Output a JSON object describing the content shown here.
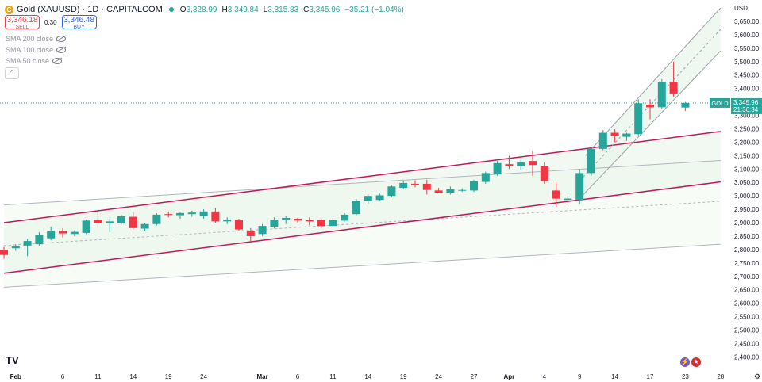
{
  "header": {
    "symbol": "Gold (XAUUSD) · 1D · CAPITALCOM",
    "coin_glyph": "G",
    "o_label": "O",
    "o_value": "3,328.99",
    "h_label": "H",
    "h_value": "3,349.84",
    "l_label": "L",
    "l_value": "3,315.83",
    "c_label": "C",
    "c_value": "3,345.96",
    "change": "−35.21 (−1.04%)"
  },
  "trade": {
    "sell_price": "3,346.18",
    "sell_label": "SELL",
    "spread": "0.30",
    "buy_price": "3,346.48",
    "buy_label": "BUY"
  },
  "indicators": [
    "SMA 200 close",
    "SMA 100 close",
    "SMA 50 close"
  ],
  "collapse_glyph": "⌃",
  "tv_logo": "TV",
  "currency": "USD",
  "price_tag": {
    "label": "GOLD",
    "price": "3,345.96",
    "countdown": "21:36:34"
  },
  "colors": {
    "up": "#26a69a",
    "down": "#f23645",
    "channel_red": "#c2185b",
    "channel_gray": "#b2b5be",
    "fill": "#e8f5e9"
  },
  "chart_data": {
    "type": "candlestick",
    "title": "Gold (XAUUSD) 1D",
    "ylim": [
      2360,
      3700
    ],
    "y_ticks": [
      "3,650.00",
      "3,600.00",
      "3,550.00",
      "3,500.00",
      "3,450.00",
      "3,400.00",
      "3,350.00",
      "3,300.00",
      "3,250.00",
      "3,200.00",
      "3,150.00",
      "3,100.00",
      "3,050.00",
      "3,000.00",
      "2,950.00",
      "2,900.00",
      "2,850.00",
      "2,800.00",
      "2,750.00",
      "2,700.00",
      "2,650.00",
      "2,600.00",
      "2,550.00",
      "2,500.00",
      "2,450.00",
      "2,400.00"
    ],
    "y_tick_values": [
      3650,
      3600,
      3550,
      3500,
      3450,
      3400,
      3350,
      3300,
      3250,
      3200,
      3150,
      3100,
      3050,
      3000,
      2950,
      2900,
      2850,
      2800,
      2750,
      2700,
      2650,
      2600,
      2550,
      2500,
      2450,
      2400
    ],
    "x_ticks": [
      {
        "label": "Feb",
        "i": 1,
        "bold": true
      },
      {
        "label": "6",
        "i": 5
      },
      {
        "label": "11",
        "i": 8
      },
      {
        "label": "14",
        "i": 11
      },
      {
        "label": "19",
        "i": 14
      },
      {
        "label": "24",
        "i": 17
      },
      {
        "label": "Mar",
        "i": 22,
        "bold": true
      },
      {
        "label": "6",
        "i": 25
      },
      {
        "label": "11",
        "i": 28
      },
      {
        "label": "14",
        "i": 31
      },
      {
        "label": "19",
        "i": 34
      },
      {
        "label": "24",
        "i": 37
      },
      {
        "label": "27",
        "i": 40
      },
      {
        "label": "Apr",
        "i": 43,
        "bold": true
      },
      {
        "label": "4",
        "i": 46
      },
      {
        "label": "9",
        "i": 49
      },
      {
        "label": "14",
        "i": 52
      },
      {
        "label": "17",
        "i": 55
      },
      {
        "label": "23",
        "i": 58
      },
      {
        "label": "28",
        "i": 61
      }
    ],
    "x_step": 14.8,
    "x_offset": 5,
    "candles": [
      {
        "i": 0,
        "o": 2800,
        "h": 2810,
        "l": 2765,
        "c": 2780
      },
      {
        "i": 1,
        "o": 2805,
        "h": 2820,
        "l": 2795,
        "c": 2812
      },
      {
        "i": 2,
        "o": 2815,
        "h": 2840,
        "l": 2775,
        "c": 2832
      },
      {
        "i": 3,
        "o": 2820,
        "h": 2865,
        "l": 2815,
        "c": 2855
      },
      {
        "i": 4,
        "o": 2842,
        "h": 2885,
        "l": 2835,
        "c": 2870
      },
      {
        "i": 5,
        "o": 2870,
        "h": 2880,
        "l": 2845,
        "c": 2860
      },
      {
        "i": 6,
        "o": 2858,
        "h": 2872,
        "l": 2850,
        "c": 2866
      },
      {
        "i": 7,
        "o": 2862,
        "h": 2912,
        "l": 2858,
        "c": 2908
      },
      {
        "i": 8,
        "o": 2910,
        "h": 2942,
        "l": 2880,
        "c": 2898
      },
      {
        "i": 9,
        "o": 2898,
        "h": 2915,
        "l": 2865,
        "c": 2905
      },
      {
        "i": 10,
        "o": 2900,
        "h": 2930,
        "l": 2895,
        "c": 2924
      },
      {
        "i": 11,
        "o": 2922,
        "h": 2940,
        "l": 2875,
        "c": 2880
      },
      {
        "i": 12,
        "o": 2878,
        "h": 2900,
        "l": 2870,
        "c": 2895
      },
      {
        "i": 13,
        "o": 2895,
        "h": 2935,
        "l": 2890,
        "c": 2930
      },
      {
        "i": 14,
        "o": 2932,
        "h": 2942,
        "l": 2920,
        "c": 2930
      },
      {
        "i": 15,
        "o": 2928,
        "h": 2940,
        "l": 2915,
        "c": 2936
      },
      {
        "i": 16,
        "o": 2932,
        "h": 2945,
        "l": 2922,
        "c": 2938
      },
      {
        "i": 17,
        "o": 2925,
        "h": 2950,
        "l": 2915,
        "c": 2942
      },
      {
        "i": 18,
        "o": 2942,
        "h": 2955,
        "l": 2900,
        "c": 2905
      },
      {
        "i": 19,
        "o": 2905,
        "h": 2920,
        "l": 2895,
        "c": 2912
      },
      {
        "i": 20,
        "o": 2912,
        "h": 2915,
        "l": 2870,
        "c": 2875
      },
      {
        "i": 21,
        "o": 2870,
        "h": 2880,
        "l": 2830,
        "c": 2850
      },
      {
        "i": 22,
        "o": 2858,
        "h": 2895,
        "l": 2850,
        "c": 2888
      },
      {
        "i": 23,
        "o": 2885,
        "h": 2920,
        "l": 2878,
        "c": 2912
      },
      {
        "i": 24,
        "o": 2910,
        "h": 2925,
        "l": 2895,
        "c": 2918
      },
      {
        "i": 25,
        "o": 2915,
        "h": 2918,
        "l": 2900,
        "c": 2908
      },
      {
        "i": 26,
        "o": 2910,
        "h": 2920,
        "l": 2890,
        "c": 2905
      },
      {
        "i": 27,
        "o": 2910,
        "h": 2915,
        "l": 2880,
        "c": 2888
      },
      {
        "i": 28,
        "o": 2888,
        "h": 2918,
        "l": 2882,
        "c": 2912
      },
      {
        "i": 29,
        "o": 2908,
        "h": 2935,
        "l": 2905,
        "c": 2930
      },
      {
        "i": 30,
        "o": 2932,
        "h": 2988,
        "l": 2928,
        "c": 2982
      },
      {
        "i": 31,
        "o": 2980,
        "h": 3005,
        "l": 2970,
        "c": 3000
      },
      {
        "i": 32,
        "o": 2985,
        "h": 3008,
        "l": 2982,
        "c": 3002
      },
      {
        "i": 33,
        "o": 3000,
        "h": 3040,
        "l": 2995,
        "c": 3035
      },
      {
        "i": 34,
        "o": 3030,
        "h": 3055,
        "l": 3025,
        "c": 3048
      },
      {
        "i": 35,
        "o": 3045,
        "h": 3058,
        "l": 3032,
        "c": 3040
      },
      {
        "i": 36,
        "o": 3045,
        "h": 3060,
        "l": 3005,
        "c": 3022
      },
      {
        "i": 37,
        "o": 3020,
        "h": 3030,
        "l": 3010,
        "c": 3012
      },
      {
        "i": 38,
        "o": 3012,
        "h": 3035,
        "l": 3005,
        "c": 3025
      },
      {
        "i": 39,
        "o": 3020,
        "h": 3028,
        "l": 3015,
        "c": 3022
      },
      {
        "i": 40,
        "o": 3020,
        "h": 3060,
        "l": 3015,
        "c": 3055
      },
      {
        "i": 41,
        "o": 3052,
        "h": 3090,
        "l": 3045,
        "c": 3085
      },
      {
        "i": 42,
        "o": 3082,
        "h": 3130,
        "l": 3075,
        "c": 3122
      },
      {
        "i": 43,
        "o": 3118,
        "h": 3150,
        "l": 3100,
        "c": 3110
      },
      {
        "i": 44,
        "o": 3110,
        "h": 3135,
        "l": 3095,
        "c": 3125
      },
      {
        "i": 45,
        "o": 3130,
        "h": 3168,
        "l": 3075,
        "c": 3115
      },
      {
        "i": 46,
        "o": 3112,
        "h": 3125,
        "l": 3045,
        "c": 3055
      },
      {
        "i": 47,
        "o": 3020,
        "h": 3050,
        "l": 2960,
        "c": 2990
      },
      {
        "i": 48,
        "o": 2985,
        "h": 3000,
        "l": 2965,
        "c": 2990
      },
      {
        "i": 49,
        "o": 2985,
        "h": 3100,
        "l": 2970,
        "c": 3085
      },
      {
        "i": 50,
        "o": 3085,
        "h": 3180,
        "l": 3075,
        "c": 3175
      },
      {
        "i": 51,
        "o": 3175,
        "h": 3245,
        "l": 3170,
        "c": 3235
      },
      {
        "i": 52,
        "o": 3235,
        "h": 3248,
        "l": 3200,
        "c": 3222
      },
      {
        "i": 53,
        "o": 3220,
        "h": 3235,
        "l": 3205,
        "c": 3232
      },
      {
        "i": 54,
        "o": 3230,
        "h": 3360,
        "l": 3225,
        "c": 3345
      },
      {
        "i": 55,
        "o": 3340,
        "h": 3360,
        "l": 3285,
        "c": 3330
      },
      {
        "i": 56,
        "o": 3330,
        "h": 3435,
        "l": 3325,
        "c": 3425
      },
      {
        "i": 57,
        "o": 3425,
        "h": 3500,
        "l": 3370,
        "c": 3380
      },
      {
        "i": 58,
        "o": 3329,
        "h": 3350,
        "l": 3316,
        "c": 3346
      }
    ],
    "channels": {
      "red": [
        {
          "i0": 0,
          "v0": 2900,
          "i1": 61,
          "v1": 3240
        },
        {
          "i0": 0,
          "v0": 2712,
          "i1": 61,
          "v1": 3052
        }
      ],
      "gray": [
        {
          "i0": 0,
          "v0": 2966,
          "i1": 61,
          "v1": 3132
        },
        {
          "i0": 0,
          "v0": 2660,
          "i1": 61,
          "v1": 2820
        }
      ],
      "gray_mid": {
        "i0": 0,
        "v0": 2815,
        "i1": 61,
        "v1": 2980
      },
      "steep_upper": {
        "i0": 49.5,
        "v0": 3150,
        "i1": 61,
        "v1": 3700
      },
      "steep_lower": {
        "i0": 49,
        "v0": 2990,
        "i1": 61,
        "v1": 3540
      },
      "steep_mid": {
        "i0": 49.3,
        "v0": 3070,
        "i1": 61,
        "v1": 3620
      }
    },
    "last_price": 3345.96
  }
}
